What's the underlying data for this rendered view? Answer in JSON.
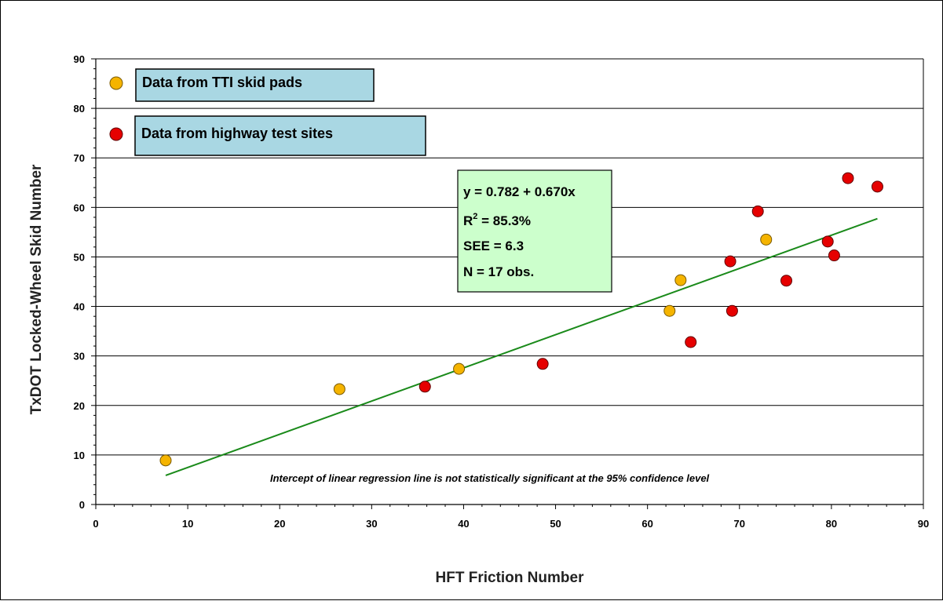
{
  "chart_data": {
    "type": "scatter",
    "xlabel": "HFT Friction Number",
    "ylabel": "TxDOT Locked-Wheel Skid Number",
    "xlim": [
      0,
      90
    ],
    "ylim": [
      0,
      90
    ],
    "x_ticks": [
      "0",
      "10",
      "20",
      "30",
      "40",
      "50",
      "60",
      "70",
      "80",
      "90"
    ],
    "y_ticks": [
      "0",
      "10",
      "20",
      "30",
      "40",
      "50",
      "60",
      "70",
      "80",
      "90"
    ],
    "grid": "horizontal",
    "legend_placement": "top-left",
    "series": [
      {
        "name": "Data from TTI skid pads",
        "color": "#f5b400",
        "points": [
          [
            7.6,
            8.9
          ],
          [
            26.5,
            23.3
          ],
          [
            39.5,
            27.4
          ],
          [
            62.4,
            39.1
          ],
          [
            63.6,
            45.3
          ],
          [
            72.9,
            53.5
          ]
        ]
      },
      {
        "name": "Data from highway test sites",
        "color": "#e60000",
        "points": [
          [
            35.8,
            23.8
          ],
          [
            48.6,
            28.4
          ],
          [
            64.7,
            32.8
          ],
          [
            69.0,
            49.1
          ],
          [
            69.2,
            39.1
          ],
          [
            72.0,
            59.2
          ],
          [
            75.1,
            45.2
          ],
          [
            79.6,
            53.1
          ],
          [
            80.3,
            50.3
          ],
          [
            81.8,
            65.9
          ],
          [
            85.0,
            64.2
          ]
        ]
      }
    ],
    "regression": {
      "intercept": 0.782,
      "slope": 0.67,
      "x_range": [
        7.6,
        85.0
      ],
      "color": "#1a8a1a"
    },
    "stats_box": {
      "line1": "y = 0.782 + 0.670x",
      "line2_prefix": "R",
      "line2_sup": "2",
      "line2_suffix": " = 85.3%",
      "line3": "SEE = 6.3",
      "line4": "N = 17 obs."
    },
    "annotation": "Intercept of linear regression line is not statistically significant  at the 95% confidence level"
  }
}
